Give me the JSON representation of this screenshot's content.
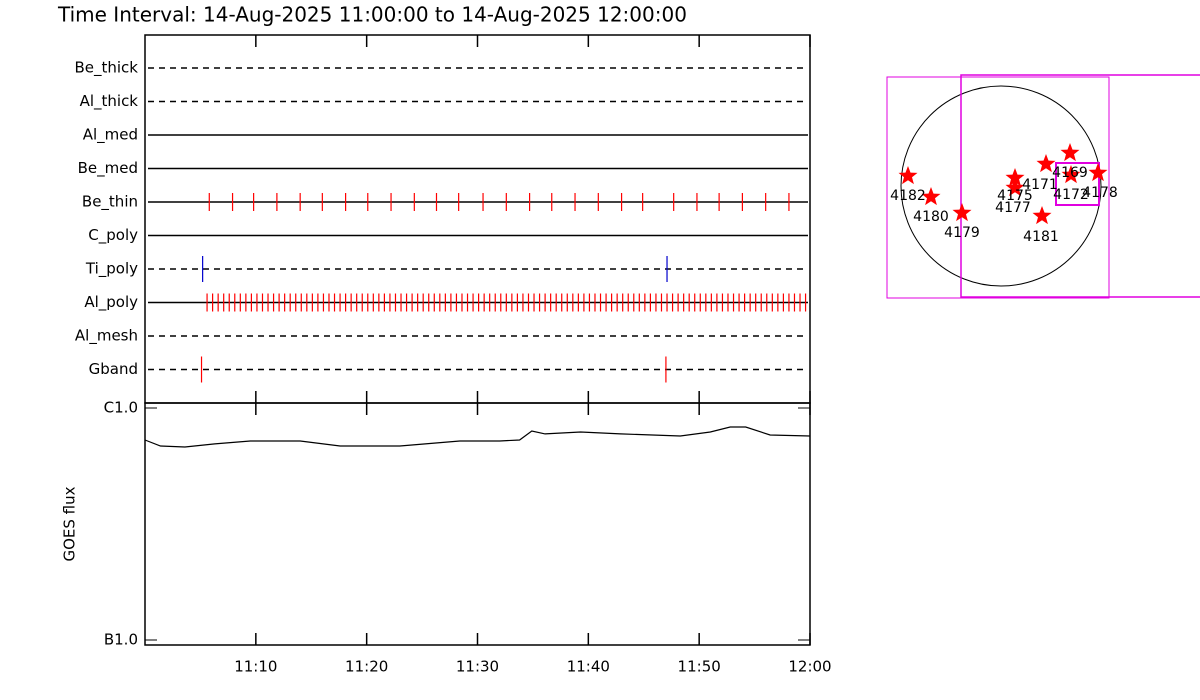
{
  "title": "Time Interval: 14-Aug-2025 11:00:00 to 14-Aug-2025 12:00:00",
  "chart_data": [
    {
      "type": "event",
      "rows": [
        {
          "name": "Be_thick",
          "style": "dashed",
          "color": "#ff0000",
          "times": []
        },
        {
          "name": "Al_thick",
          "style": "dashed",
          "color": "#ff0000",
          "times": []
        },
        {
          "name": "Al_med",
          "style": "solid",
          "color": "#ff0000",
          "times": []
        },
        {
          "name": "Be_med",
          "style": "solid",
          "color": "#ff0000",
          "times": []
        },
        {
          "name": "Be_thin",
          "style": "solid",
          "color": "#ff0000",
          "times": [
            5.8,
            7.9,
            9.8,
            11.9,
            14.0,
            16.0,
            18.1,
            20.1,
            22.2,
            24.3,
            26.3,
            28.3,
            30.5,
            32.6,
            34.7,
            36.7,
            38.8,
            40.9,
            43.0,
            44.9,
            47.7,
            49.8,
            51.8,
            53.9,
            56.0,
            58.1
          ]
        },
        {
          "name": "C_poly",
          "style": "solid",
          "color": "#ff0000",
          "times": []
        },
        {
          "name": "Ti_poly",
          "style": "dashed",
          "color": "#0000cc",
          "times": [
            5.2,
            47.1
          ]
        },
        {
          "name": "Al_poly",
          "style": "solid",
          "color": "#ff0000",
          "times": [
            5.6,
            6.1,
            6.6,
            7.1,
            7.6,
            8.1,
            8.6,
            9.1,
            9.6,
            10.1,
            10.6,
            11.1,
            11.6,
            12.1,
            12.6,
            13.1,
            13.6,
            14.1,
            14.6,
            15.1,
            15.6,
            16.1,
            16.6,
            17.1,
            17.6,
            18.1,
            18.6,
            19.1,
            19.6,
            20.1,
            20.6,
            21.1,
            21.6,
            22.1,
            22.6,
            23.1,
            23.6,
            24.1,
            24.6,
            25.1,
            25.6,
            26.1,
            26.6,
            27.1,
            27.6,
            28.1,
            28.6,
            29.1,
            29.6,
            30.1,
            30.6,
            31.1,
            31.6,
            32.1,
            32.6,
            33.1,
            33.6,
            34.1,
            34.6,
            35.1,
            35.6,
            36.1,
            36.6,
            37.1,
            37.6,
            38.1,
            38.6,
            39.1,
            39.6,
            40.1,
            40.6,
            41.1,
            41.6,
            42.1,
            42.6,
            43.1,
            43.6,
            44.1,
            44.6,
            45.1,
            45.6,
            46.1,
            46.6,
            47.1,
            47.6,
            48.1,
            48.6,
            49.1,
            49.6,
            50.1,
            50.6,
            51.1,
            51.6,
            52.1,
            52.6,
            53.1,
            53.6,
            54.1,
            54.6,
            55.1,
            55.6,
            56.1,
            56.6,
            57.1,
            57.6,
            58.1,
            58.6,
            59.1,
            59.6
          ]
        },
        {
          "name": "Al_mesh",
          "style": "dashed",
          "color": "#ff0000",
          "times": []
        },
        {
          "name": "Gband",
          "style": "dashed",
          "color": "#ff0000",
          "times": [
            5.1,
            47.0
          ]
        }
      ]
    },
    {
      "type": "line",
      "y_label": "GOES flux",
      "log_y": true,
      "color": "#000000",
      "x": [
        0,
        1.4,
        3.6,
        6.3,
        9.5,
        14,
        17.6,
        23,
        28.4,
        32,
        33.8,
        34.9,
        36.1,
        39.3,
        42.9,
        48.3,
        51,
        52.8,
        54.2,
        56.4,
        60
      ],
      "values": [
        7.28e-07,
        6.86e-07,
        6.79e-07,
        7e-07,
        7.21e-07,
        7.21e-07,
        6.86e-07,
        6.86e-07,
        7.21e-07,
        7.21e-07,
        7.28e-07,
        7.96e-07,
        7.73e-07,
        7.88e-07,
        7.73e-07,
        7.57e-07,
        7.88e-07,
        8.28e-07,
        8.28e-07,
        7.65e-07,
        7.57e-07
      ],
      "xlim": [
        0,
        60
      ],
      "xticks": [
        {
          "value": 10,
          "label": "11:10"
        },
        {
          "value": 20,
          "label": "11:20"
        },
        {
          "value": 30,
          "label": "11:30"
        },
        {
          "value": 40,
          "label": "11:40"
        },
        {
          "value": 50,
          "label": "11:50"
        },
        {
          "value": 60,
          "label": "12:00"
        }
      ],
      "ylim": [
        1e-07,
        1e-06
      ],
      "yticks": [
        {
          "value": 1e-07,
          "label": "B1.0"
        },
        {
          "value": 1e-06,
          "label": "C1.0"
        }
      ]
    }
  ],
  "map": {
    "regions": [
      "4182",
      "4180",
      "4179",
      "4175",
      "4177",
      "4171",
      "4169",
      "4172",
      "4178",
      "4181"
    ]
  }
}
